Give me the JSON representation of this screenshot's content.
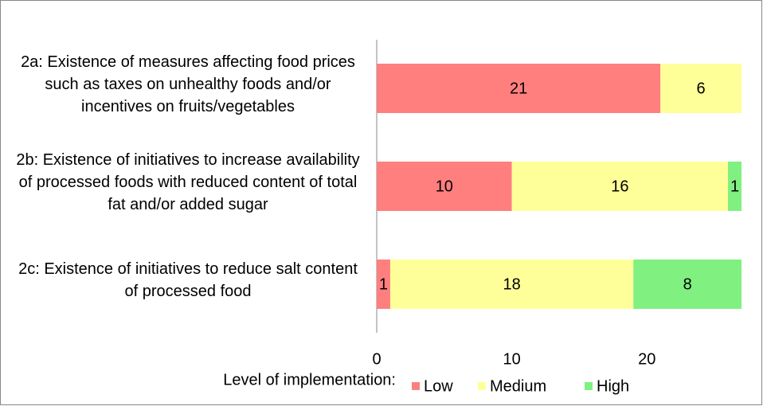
{
  "chart_data": {
    "type": "stacked-barh",
    "categories": [
      "2a: Existence of measures affecting food prices such as taxes on unhealthy foods and/or incentives on fruits/vegetables",
      "2b: Existence of initiatives to increase availability of processed foods with reduced content of total fat and/or added sugar",
      "2c: Existence of initiatives to reduce salt content of processed food"
    ],
    "series": [
      {
        "name": "Low",
        "color": "#ff7f7f",
        "values": [
          21,
          10,
          1
        ]
      },
      {
        "name": "Medium",
        "color": "#ffff99",
        "values": [
          6,
          16,
          18
        ]
      },
      {
        "name": "High",
        "color": "#80f080",
        "values": [
          null,
          1,
          8
        ]
      }
    ],
    "xlim": [
      0,
      27
    ],
    "xticks": [
      0,
      10,
      20
    ],
    "legend_title": "Level of implementation:"
  }
}
